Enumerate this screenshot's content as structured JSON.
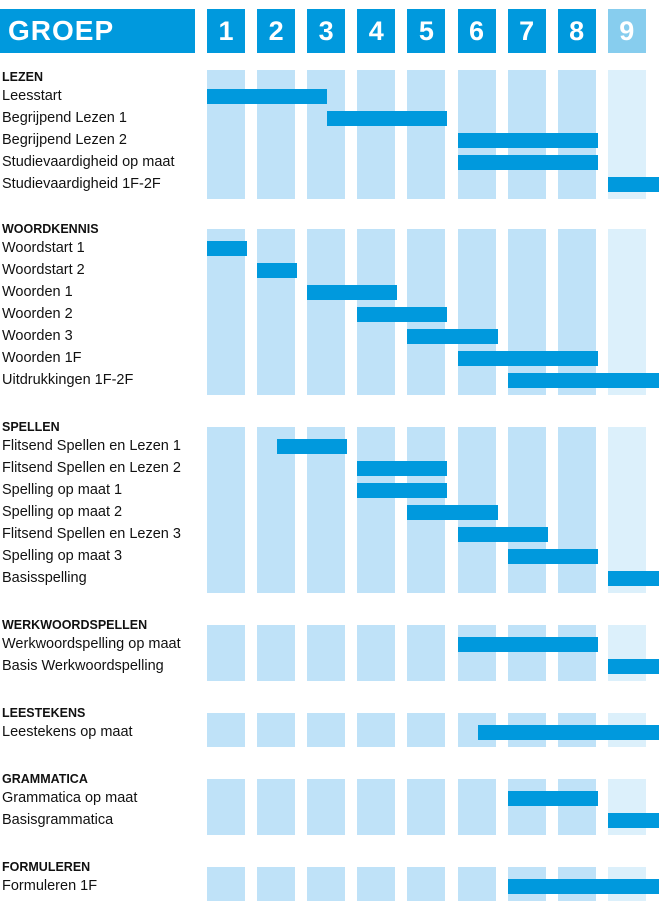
{
  "chart_data": {
    "type": "gantt",
    "title": "GROEP",
    "groups": [
      "1",
      "2",
      "3",
      "4",
      "5",
      "6",
      "7",
      "8",
      "9"
    ],
    "colors": {
      "header": "#0099dd",
      "header_last": "#87cdee",
      "column": "#bfe2f8",
      "column_last": "#dcf0fb",
      "bar": "#0099dd"
    },
    "sections": [
      {
        "title": "LEZEN",
        "rows": [
          {
            "label": "Leesstart",
            "start": 1,
            "end": 3.4
          },
          {
            "label": "Begrijpend Lezen 1",
            "start": 3.4,
            "end": 5.8
          },
          {
            "label": "Begrijpend Lezen 2",
            "start": 6,
            "end": 8.8
          },
          {
            "label": "Studievaardigheid op maat",
            "start": 6,
            "end": 8.8
          },
          {
            "label": "Studievaardigheid 1F-2F",
            "start": 9,
            "end": 10
          }
        ]
      },
      {
        "title": "WOORDKENNIS",
        "rows": [
          {
            "label": "Woordstart 1",
            "start": 1,
            "end": 1.8
          },
          {
            "label": "Woordstart 2",
            "start": 2,
            "end": 2.8
          },
          {
            "label": "Woorden 1",
            "start": 3,
            "end": 4.8
          },
          {
            "label": "Woorden 2",
            "start": 4,
            "end": 5.8
          },
          {
            "label": "Woorden 3",
            "start": 5,
            "end": 6.8
          },
          {
            "label": "Woorden 1F",
            "start": 6,
            "end": 8.8
          },
          {
            "label": "Uitdrukkingen 1F-2F",
            "start": 7,
            "end": 10
          }
        ]
      },
      {
        "title": "SPELLEN",
        "rows": [
          {
            "label": "Flitsend Spellen en Lezen 1",
            "start": 2.4,
            "end": 3.8
          },
          {
            "label": "Flitsend Spellen en Lezen 2",
            "start": 4,
            "end": 5.8
          },
          {
            "label": "Spelling op maat 1",
            "start": 4,
            "end": 5.8
          },
          {
            "label": "Spelling op maat 2",
            "start": 5,
            "end": 6.8
          },
          {
            "label": "Flitsend Spellen en Lezen 3",
            "start": 6,
            "end": 7.8
          },
          {
            "label": "Spelling op maat 3",
            "start": 7,
            "end": 8.8
          },
          {
            "label": "Basisspelling",
            "start": 9,
            "end": 10
          }
        ]
      },
      {
        "title": "WERKWOORDSPELLEN",
        "rows": [
          {
            "label": "Werkwoordspelling op maat",
            "start": 6,
            "end": 8.8
          },
          {
            "label": "Basis Werkwoordspelling",
            "start": 9,
            "end": 10
          }
        ]
      },
      {
        "title": "LEESTEKENS",
        "rows": [
          {
            "label": "Leestekens op maat",
            "start": 6.4,
            "end": 10
          }
        ]
      },
      {
        "title": "GRAMMATICA",
        "rows": [
          {
            "label": "Grammatica op maat",
            "start": 7,
            "end": 8.8
          },
          {
            "label": "Basisgrammatica",
            "start": 9,
            "end": 10
          }
        ]
      },
      {
        "title": "FORMULEREN",
        "rows": [
          {
            "label": "Formuleren 1F",
            "start": 7,
            "end": 10
          }
        ]
      }
    ]
  }
}
